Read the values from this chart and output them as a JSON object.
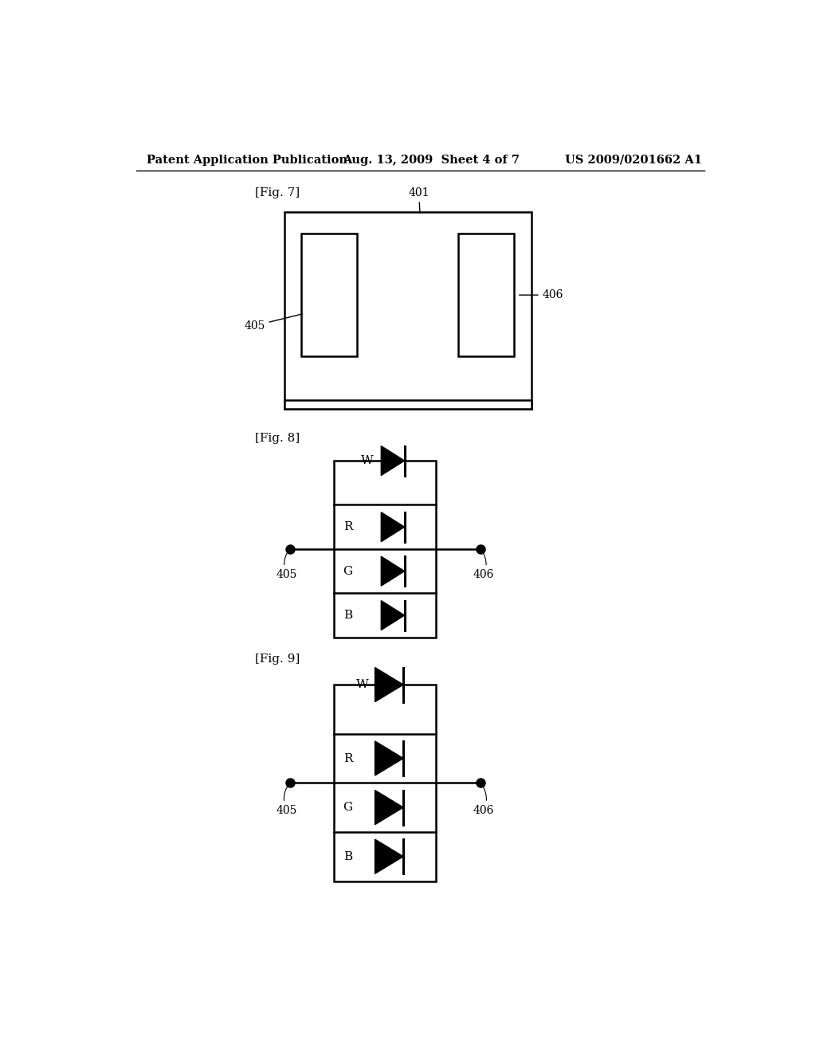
{
  "bg_color": "#ffffff",
  "header_left": "Patent Application Publication",
  "header_mid": "Aug. 13, 2009  Sheet 4 of 7",
  "header_right": "US 2009/0201662 A1",
  "fig7_label": "[Fig. 7]",
  "fig8_label": "[Fig. 8]",
  "fig9_label": "[Fig. 9]",
  "label_401": "401",
  "label_405": "405",
  "label_406": "406",
  "diode_labels_8": [
    "W",
    "R",
    "G",
    "B"
  ],
  "diode_labels_9": [
    "W",
    "R",
    "G",
    "B"
  ]
}
